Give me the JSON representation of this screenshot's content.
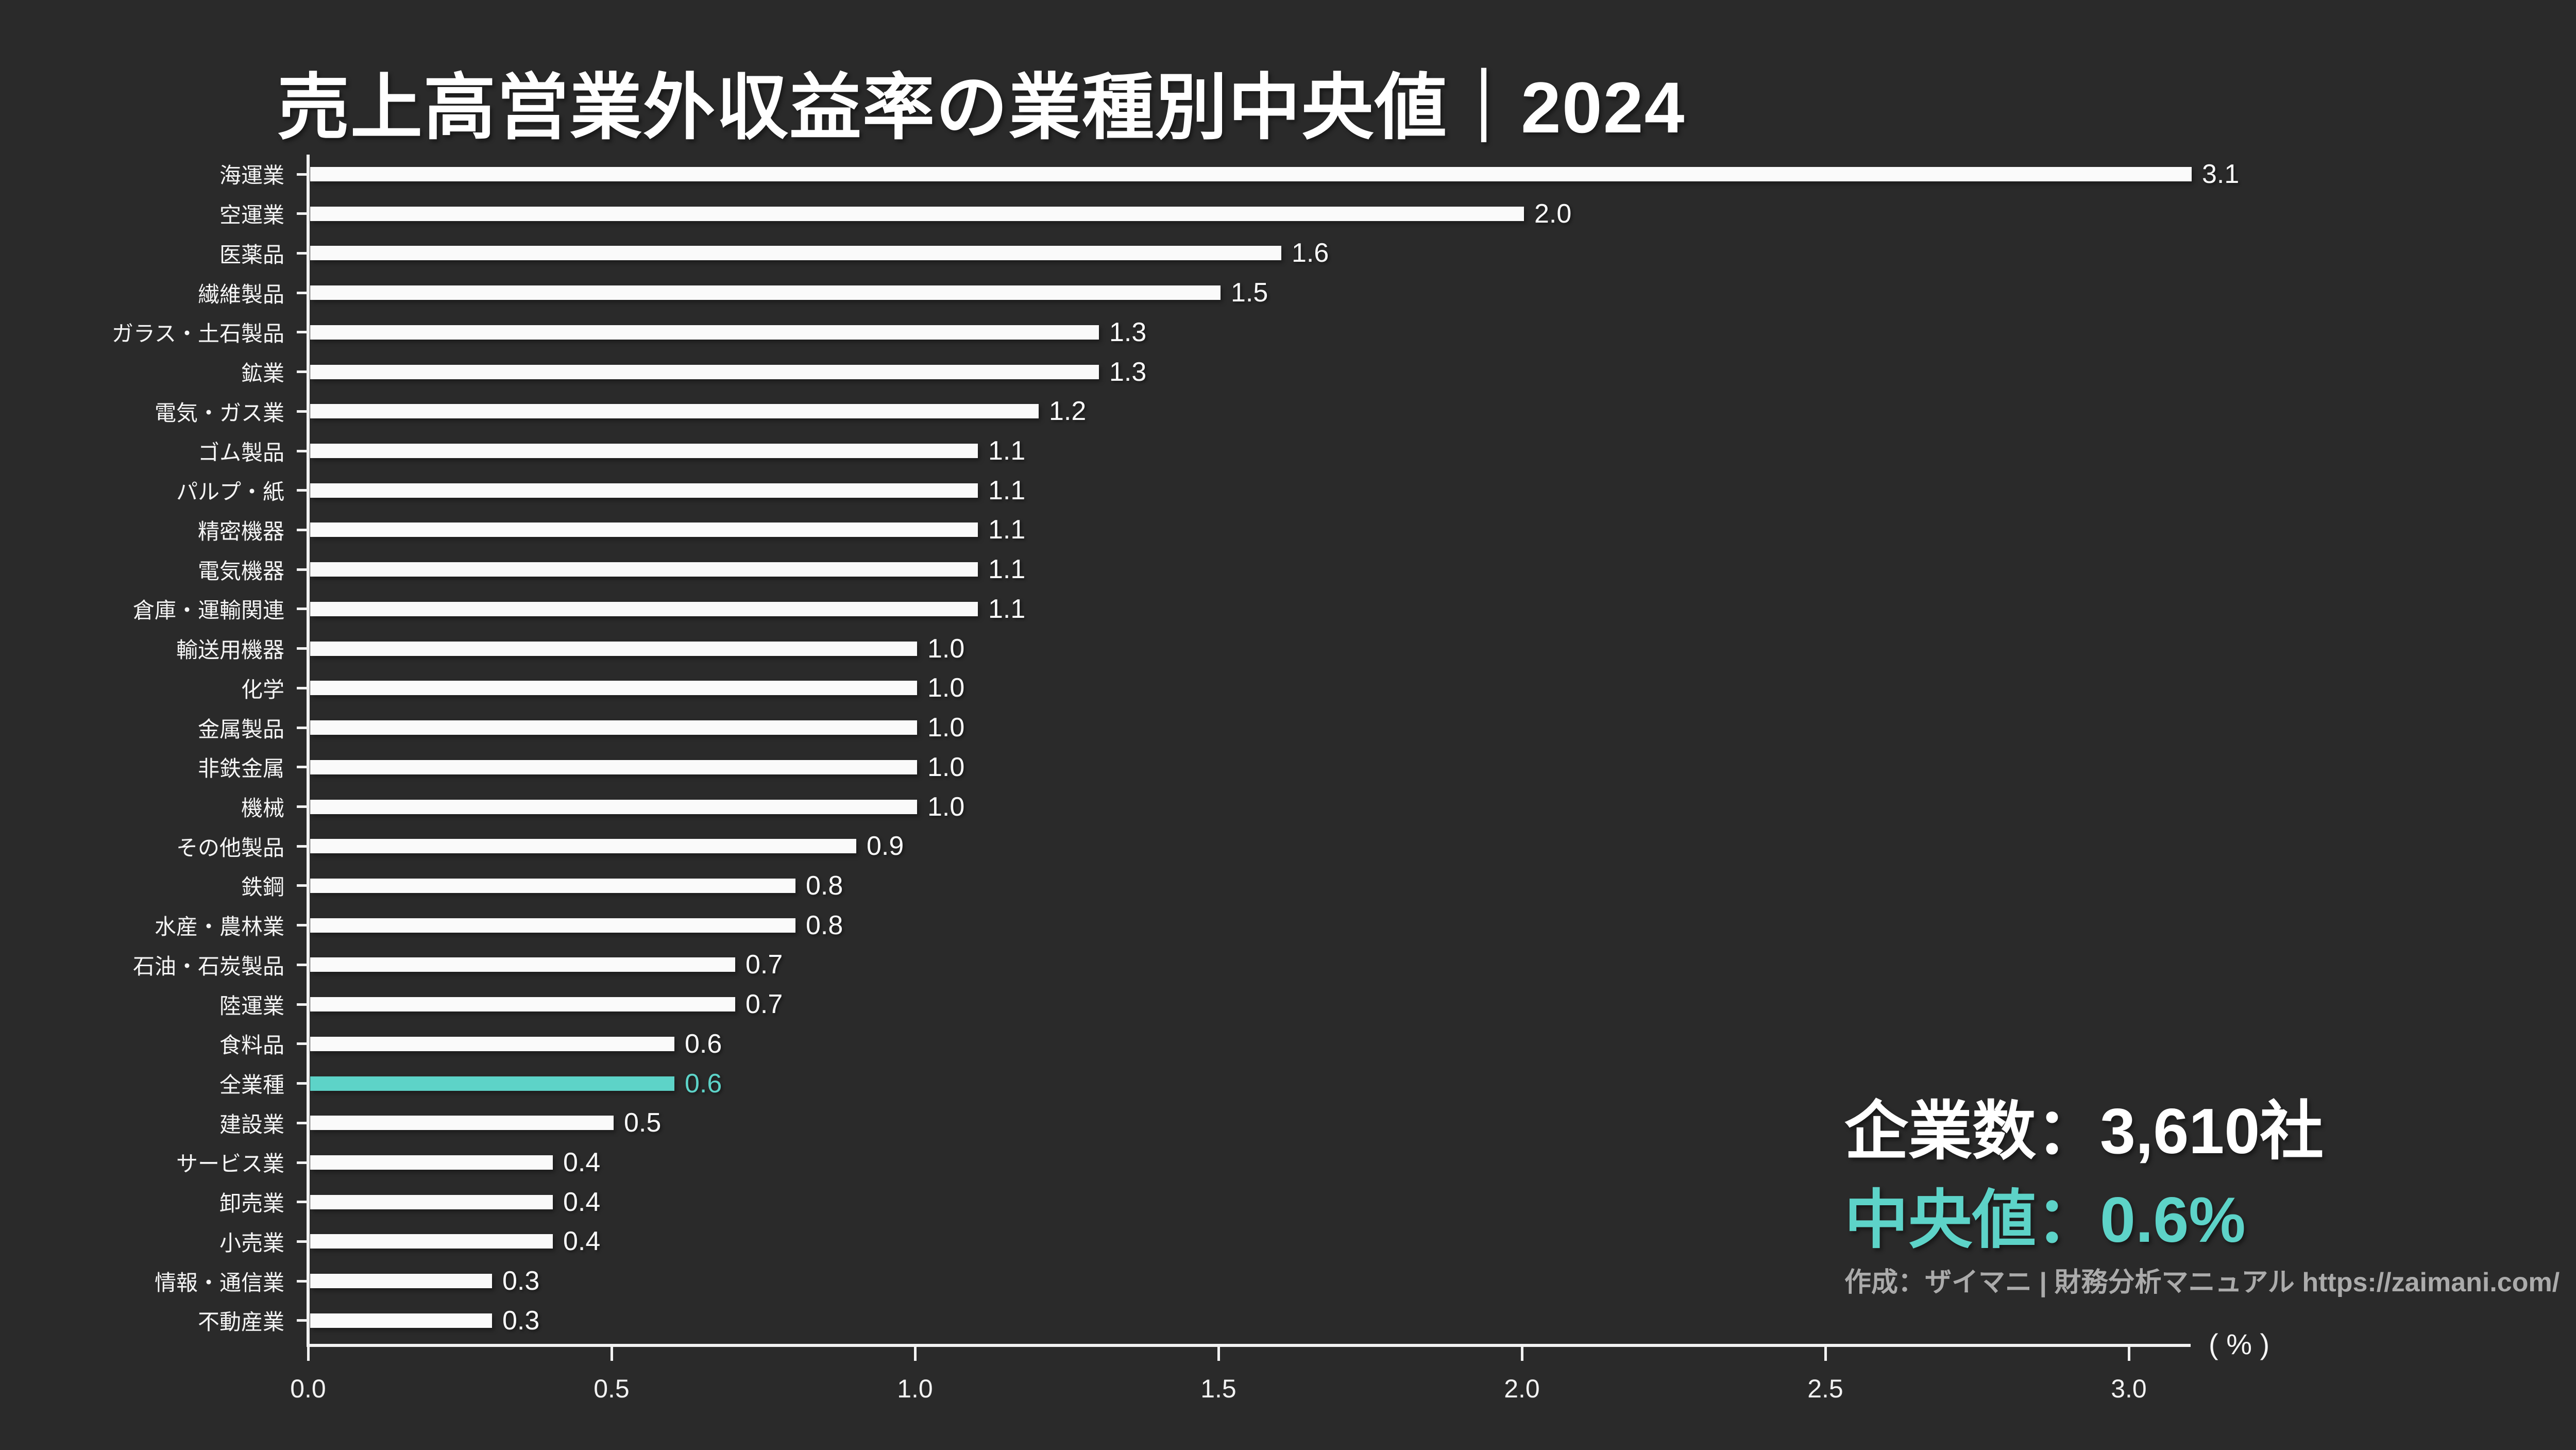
{
  "title": "売上高営業外収益率の業種別中央値｜2024",
  "colors": {
    "background": "#2a2a2a",
    "bar": "#fafafa",
    "highlight": "#5dd3c8",
    "axis": "#f2f2f2",
    "text": "#ffffff",
    "credit_text": "#ababab"
  },
  "info": {
    "companies_label": "企業数：3,610社",
    "median_label": "中央値：0.6%",
    "credit": "作成：ザイマニ | 財務分析マニュアル https://zaimani.com/"
  },
  "chart_data": {
    "type": "bar",
    "orientation": "horizontal",
    "title": "売上高営業外収益率の業種別中央値｜2024",
    "categories": [
      "海運業",
      "空運業",
      "医薬品",
      "繊維製品",
      "ガラス・土石製品",
      "鉱業",
      "電気・ガス業",
      "ゴム製品",
      "パルプ・紙",
      "精密機器",
      "電気機器",
      "倉庫・運輸関連",
      "輸送用機器",
      "化学",
      "金属製品",
      "非鉄金属",
      "機械",
      "その他製品",
      "鉄鋼",
      "水産・農林業",
      "石油・石炭製品",
      "陸運業",
      "食料品",
      "全業種",
      "建設業",
      "サービス業",
      "卸売業",
      "小売業",
      "情報・通信業",
      "不動産業"
    ],
    "values": [
      3.1,
      2.0,
      1.6,
      1.5,
      1.3,
      1.3,
      1.2,
      1.1,
      1.1,
      1.1,
      1.1,
      1.1,
      1.0,
      1.0,
      1.0,
      1.0,
      1.0,
      0.9,
      0.8,
      0.8,
      0.7,
      0.7,
      0.6,
      0.6,
      0.5,
      0.4,
      0.4,
      0.4,
      0.3,
      0.3
    ],
    "highlight_category": "全業種",
    "highlight_value": 0.6,
    "xlabel": "( % )",
    "xlim": [
      0,
      3.1
    ],
    "xticks": [
      "0.0",
      "0.5",
      "1.0",
      "1.5",
      "2.0",
      "2.5",
      "3.0"
    ],
    "grid": false,
    "legend": false
  }
}
